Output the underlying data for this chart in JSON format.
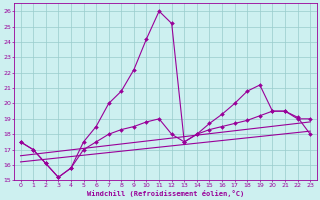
{
  "xlabel": "Windchill (Refroidissement éolien,°C)",
  "bg_color": "#cdf0f0",
  "grid_color": "#99cccc",
  "line_color": "#990099",
  "xlim": [
    -0.5,
    23.5
  ],
  "ylim": [
    15,
    26.5
  ],
  "xticks": [
    0,
    1,
    2,
    3,
    4,
    5,
    6,
    7,
    8,
    9,
    10,
    11,
    12,
    13,
    14,
    15,
    16,
    17,
    18,
    19,
    20,
    21,
    22,
    23
  ],
  "yticks": [
    15,
    16,
    17,
    18,
    19,
    20,
    21,
    22,
    23,
    24,
    25,
    26
  ],
  "series1_x": [
    0,
    1,
    2,
    3,
    4,
    5,
    6,
    7,
    8,
    9,
    10,
    11,
    12,
    13,
    14,
    15,
    16,
    17,
    18,
    19,
    20,
    21,
    22,
    23
  ],
  "series1_y": [
    17.5,
    17.0,
    16.1,
    15.2,
    15.8,
    17.5,
    18.5,
    20.0,
    20.8,
    22.2,
    24.2,
    26.0,
    25.2,
    17.5,
    18.0,
    18.7,
    19.3,
    20.0,
    20.8,
    21.2,
    19.5,
    19.5,
    19.0,
    19.0
  ],
  "series2_x": [
    0,
    1,
    2,
    3,
    4,
    5,
    6,
    7,
    8,
    9,
    10,
    11,
    12,
    13,
    14,
    15,
    16,
    17,
    18,
    19,
    20,
    21,
    22,
    23
  ],
  "series2_y": [
    17.5,
    17.0,
    16.1,
    15.2,
    15.8,
    17.0,
    17.5,
    18.0,
    18.3,
    18.5,
    18.8,
    19.0,
    18.0,
    17.5,
    18.0,
    18.3,
    18.5,
    18.7,
    18.9,
    19.2,
    19.5,
    19.5,
    19.1,
    18.0
  ],
  "trend1_x": [
    0,
    23
  ],
  "trend1_y": [
    16.2,
    18.2
  ],
  "trend2_x": [
    0,
    23
  ],
  "trend2_y": [
    16.6,
    18.8
  ]
}
